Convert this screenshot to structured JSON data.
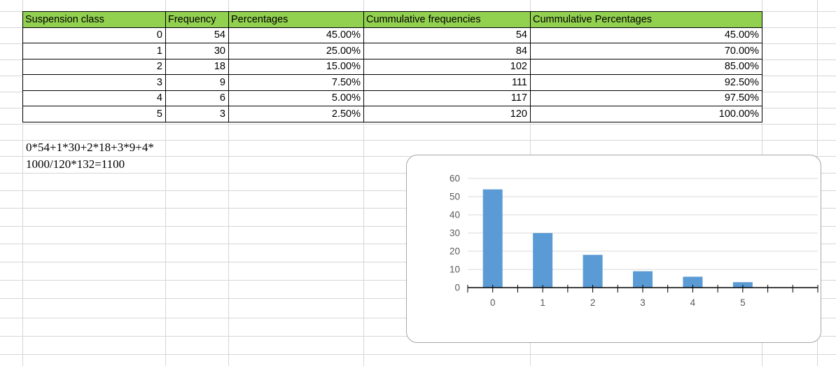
{
  "sheet": {
    "table": {
      "header_bg": "#92D050",
      "columns": [
        "Suspension class",
        "Frequency",
        "Percentages",
        "Cummulative frequencies",
        "Cummulative Percentages"
      ],
      "rows": [
        [
          "0",
          "54",
          "45.00%",
          "54",
          "45.00%"
        ],
        [
          "1",
          "30",
          "25.00%",
          "84",
          "70.00%"
        ],
        [
          "2",
          "18",
          "15.00%",
          "102",
          "85.00%"
        ],
        [
          "3",
          "9",
          "7.50%",
          "111",
          "92.50%"
        ],
        [
          "4",
          "6",
          "5.00%",
          "117",
          "97.50%"
        ],
        [
          "5",
          "3",
          "2.50%",
          "120",
          "100.00%"
        ]
      ]
    },
    "formula": {
      "line1": "0*54+1*30+2*18+3*9+4*",
      "line2": "1000/120*132=1100"
    }
  },
  "chart_data": {
    "type": "bar",
    "categories": [
      "0",
      "1",
      "2",
      "3",
      "4",
      "5"
    ],
    "values": [
      54,
      30,
      18,
      9,
      6,
      3
    ],
    "title": "",
    "xlabel": "",
    "ylabel": "",
    "yticks": [
      0,
      10,
      20,
      30,
      40,
      50,
      60
    ],
    "ylim": [
      0,
      60
    ],
    "grid": "horizontal",
    "legend": "none",
    "bar_color": "#5B9BD5",
    "gridline_color": "#D9D9D9",
    "axis_color": "#000000",
    "tick_label_color": "#595959"
  }
}
